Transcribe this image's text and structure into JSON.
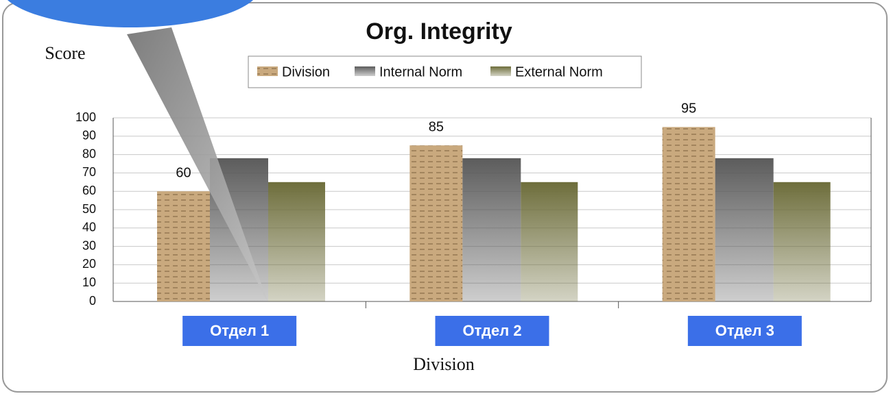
{
  "chart_data": {
    "type": "bar",
    "title": "Org. Integrity",
    "y_label": "Score",
    "x_label": "Division",
    "categories": [
      "Отдел 1",
      "Отдел 2",
      "Отдел 3"
    ],
    "series": [
      {
        "name": "Division",
        "color": "#c9a97e",
        "values": [
          60,
          85,
          95
        ]
      },
      {
        "name": "Internal Norm",
        "color": "#5c5c5c",
        "values": [
          78,
          78,
          78
        ]
      },
      {
        "name": "External Norm",
        "color": "#6e6e3c",
        "values": [
          65,
          65,
          65
        ]
      }
    ],
    "value_label_series": 0,
    "ylim": [
      0,
      100
    ],
    "yticks": [
      0,
      10,
      20,
      30,
      40,
      50,
      60,
      70,
      80,
      90,
      100
    ],
    "grid": true
  }
}
